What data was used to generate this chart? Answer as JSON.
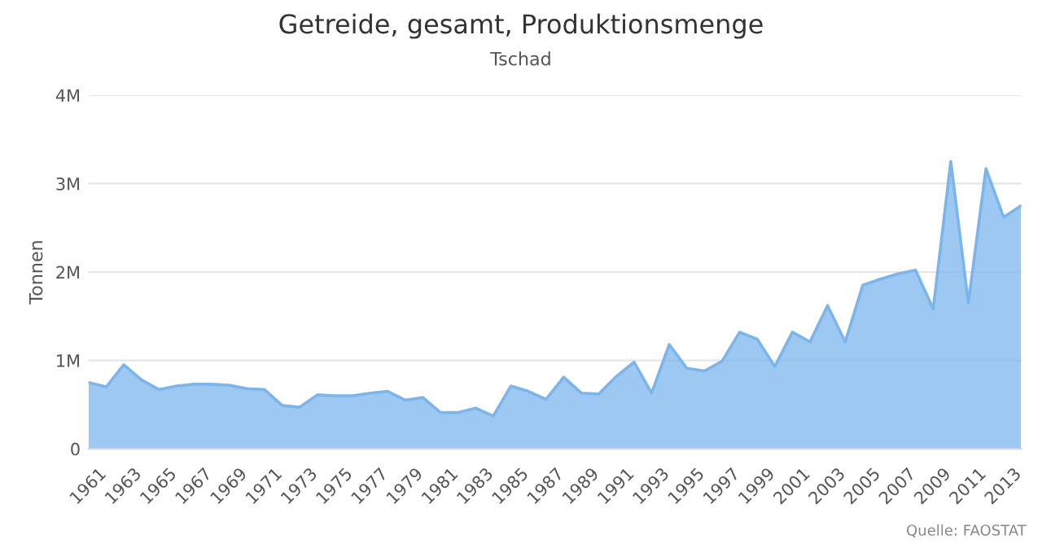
{
  "chart_data": {
    "type": "area",
    "title": "Getreide, gesamt, Produktionsmenge",
    "subtitle": "Tschad",
    "ylabel": "Tonnen",
    "annotations": [
      "Quelle: FAOSTAT"
    ],
    "x": [
      1961,
      1962,
      1963,
      1964,
      1965,
      1966,
      1967,
      1968,
      1969,
      1970,
      1971,
      1972,
      1973,
      1974,
      1975,
      1976,
      1977,
      1978,
      1979,
      1980,
      1981,
      1982,
      1983,
      1984,
      1985,
      1986,
      1987,
      1988,
      1989,
      1990,
      1991,
      1992,
      1993,
      1994,
      1995,
      1996,
      1997,
      1998,
      1999,
      2000,
      2001,
      2002,
      2003,
      2004,
      2005,
      2006,
      2007,
      2008,
      2009,
      2010,
      2011,
      2012,
      2013,
      2014
    ],
    "series": [
      {
        "color": "#7cb5ec",
        "values": [
          750000,
          700000,
          950000,
          780000,
          670000,
          710000,
          730000,
          730000,
          720000,
          680000,
          670000,
          490000,
          470000,
          610000,
          600000,
          600000,
          630000,
          650000,
          550000,
          580000,
          410000,
          410000,
          460000,
          370000,
          710000,
          650000,
          560000,
          810000,
          630000,
          620000,
          820000,
          980000,
          630000,
          1180000,
          910000,
          880000,
          990000,
          1320000,
          1240000,
          930000,
          1320000,
          1210000,
          1620000,
          1210000,
          1850000,
          1920000,
          1980000,
          2020000,
          1580000,
          3250000,
          1650000,
          3170000,
          2620000,
          2750000
        ]
      }
    ],
    "xlim": [
      1961,
      2014
    ],
    "xticks": [
      1961,
      1963,
      1965,
      1967,
      1969,
      1971,
      1973,
      1975,
      1977,
      1979,
      1981,
      1983,
      1985,
      1987,
      1989,
      1991,
      1993,
      1995,
      1997,
      1999,
      2001,
      2003,
      2005,
      2007,
      2009,
      2011,
      2013
    ],
    "ylim": [
      0,
      4000000
    ],
    "yticks": [
      0,
      {
        "value": 1000000,
        "label": "1M"
      },
      {
        "value": 2000000,
        "label": "2M"
      },
      {
        "value": 3000000,
        "label": "3M"
      },
      {
        "value": 4000000,
        "label": "4M"
      }
    ],
    "grid": "y",
    "legend": false
  }
}
